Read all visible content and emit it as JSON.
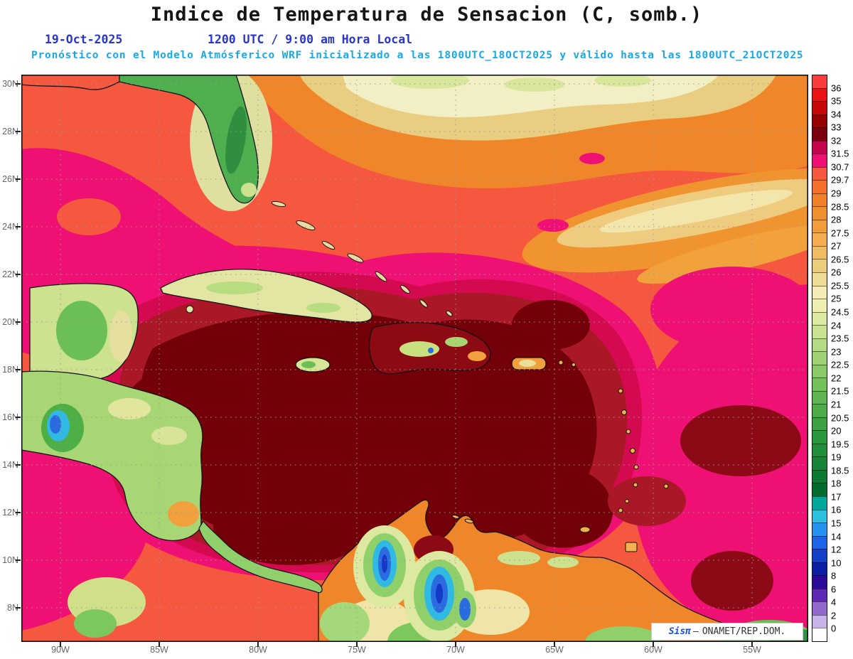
{
  "header": {
    "title": "Indice de Temperatura de Sensacion (C, somb.)",
    "date": "19-Oct-2025",
    "time": "1200 UTC / 9:00 am Hora Local",
    "forecast": "Pronóstico con el Modelo Atmósferico WRF inicializado a las 1800UTC_18OCT2025 y válido hasta las  1800UTC_21OCT2025"
  },
  "map": {
    "lat_ticks": [
      "30N",
      "28N",
      "26N",
      "24N",
      "22N",
      "20N",
      "18N",
      "16N",
      "14N",
      "12N",
      "10N",
      "8N"
    ],
    "lon_ticks": [
      "90W",
      "85W",
      "80W",
      "75W",
      "70W",
      "65W",
      "60W",
      "55W"
    ],
    "watermark": {
      "brand": "Sisπ",
      "separator": "–",
      "source": "ONAMET/REP.DOM."
    }
  },
  "colorbar": {
    "unit": "C",
    "labels": [
      "36",
      "35",
      "34",
      "33",
      "32",
      "31.5",
      "30.7",
      "29.7",
      "29",
      "28.5",
      "28",
      "27.5",
      "27",
      "26.5",
      "26",
      "25.5",
      "25",
      "24.5",
      "24",
      "23.5",
      "23",
      "22.5",
      "22",
      "21.5",
      "21",
      "20.5",
      "20",
      "19.5",
      "19",
      "18.5",
      "18",
      "17",
      "16",
      "15",
      "14",
      "12",
      "10",
      "8",
      "6",
      "4",
      "2",
      "0"
    ],
    "segment_colors": [
      "#fa3c3c",
      "#ea1414",
      "#c80808",
      "#960000",
      "#7a0010",
      "#c4044c",
      "#ee1173",
      "#f6573f",
      "#f4702a",
      "#f0802a",
      "#ef8f2e",
      "#f19d3c",
      "#f3ac4e",
      "#f0bc62",
      "#eccd7c",
      "#eedc96",
      "#f4ecb4",
      "#eef0b2",
      "#dceba0",
      "#c9e390",
      "#b5db82",
      "#a0d274",
      "#8aca66",
      "#74c05a",
      "#5fb650",
      "#4bac48",
      "#3aa242",
      "#2c983e",
      "#208e3a",
      "#168437",
      "#0d7a33",
      "#046b2e",
      "#00a89c",
      "#2cc0e0",
      "#2892f0",
      "#1e64e6",
      "#1440c8",
      "#0c1ea4",
      "#2a0a96",
      "#5c28b4",
      "#9268cc",
      "#c8b4e8",
      "#ffffff"
    ]
  },
  "chart_data": {
    "type": "heatmap",
    "title": "Indice de Temperatura de Sensacion (C, somb.)",
    "valid_time": "19-Oct-2025 1200 UTC / 9:00 am Hora Local",
    "model": "WRF",
    "initialized": "1800UTC_18OCT2025",
    "valid_until": "1800UTC_21OCT2025",
    "lat_range": [
      "8N",
      "30N"
    ],
    "lon_range": [
      "90W",
      "55W"
    ],
    "scale_values_c": [
      36,
      35,
      34,
      33,
      32,
      31.5,
      30.7,
      29.7,
      29,
      28.5,
      28,
      27.5,
      27,
      26.5,
      26,
      25.5,
      25,
      24.5,
      24,
      23.5,
      23,
      22.5,
      22,
      21.5,
      21,
      20.5,
      20,
      19.5,
      19,
      18.5,
      18,
      17,
      16,
      15,
      14,
      12,
      10,
      8,
      6,
      4,
      2,
      0
    ],
    "readings": [
      {
        "region": "Central Caribbean Sea (Cuba to Venezuela offshore)",
        "value_c": "33-36 (dark maroon core)"
      },
      {
        "region": "Surrounding Caribbean / Gulf of Mexico / eastern Atlantic",
        "value_c": "30.7-31.5 (magenta)"
      },
      {
        "region": "Open Atlantic mid-latitudes",
        "value_c": "29.7-30.7 (red-orange)"
      },
      {
        "region": "Northern Atlantic band (28-31N)",
        "value_c": "25-29 (orange to cream)"
      },
      {
        "region": "Andes highlands (Colombia/Venezuela) and Guatemala highlands",
        "value_c": "8-16 (blue cold spots)"
      }
    ]
  }
}
